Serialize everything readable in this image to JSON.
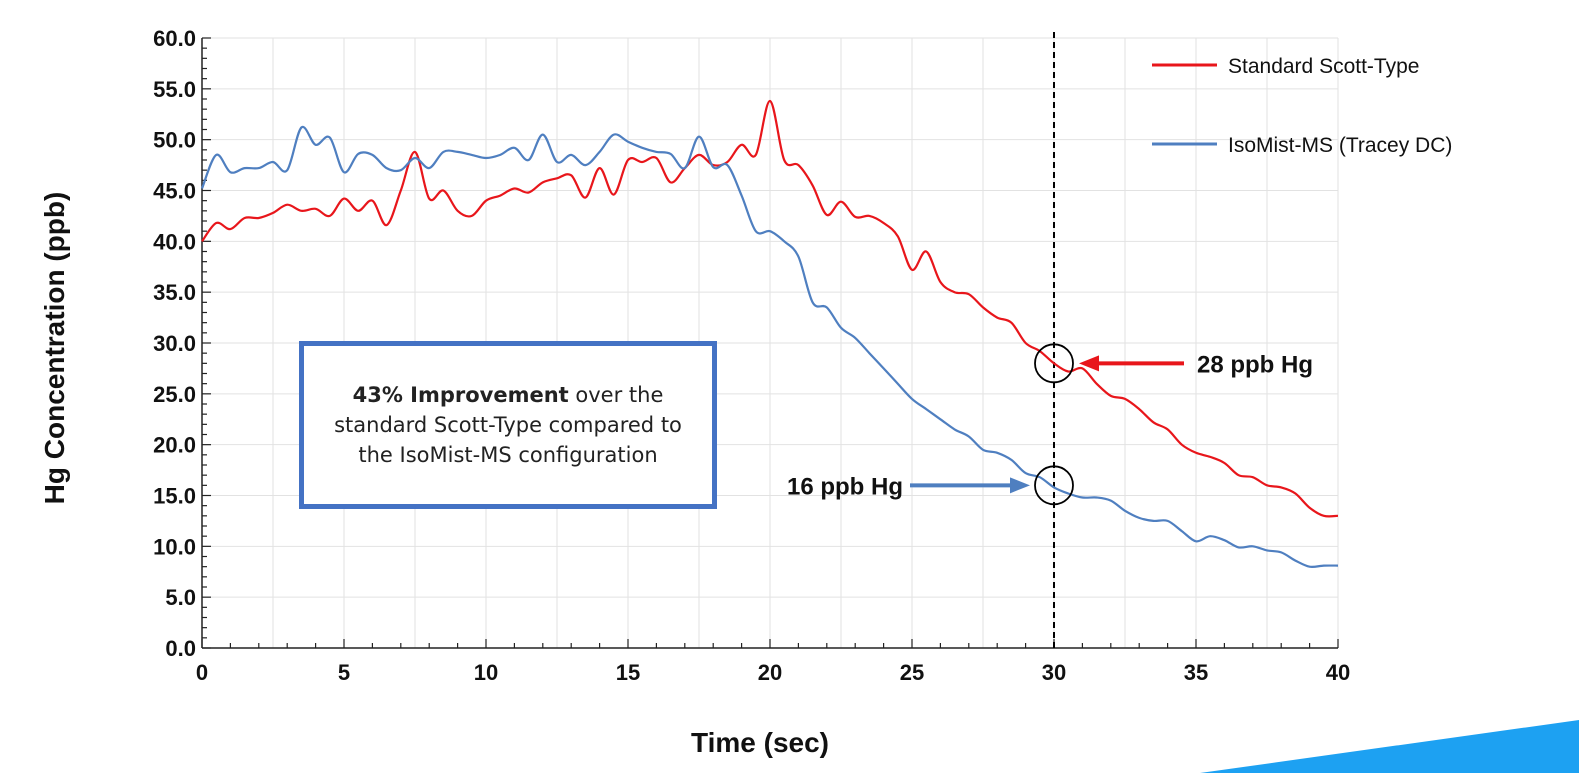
{
  "chart_data": {
    "type": "line",
    "xlabel": "Time (sec)",
    "ylabel": "Hg Concentration (ppb)",
    "xlim": [
      0,
      40
    ],
    "ylim": [
      0,
      60
    ],
    "x_ticks": [
      "0",
      "5",
      "10",
      "15",
      "20",
      "25",
      "30",
      "35",
      "40"
    ],
    "y_ticks": [
      "0.0",
      "5.0",
      "10.0",
      "15.0",
      "20.0",
      "25.0",
      "30.0",
      "35.0",
      "40.0",
      "45.0",
      "50.0",
      "55.0",
      "60.0"
    ],
    "grid": true,
    "legend_position": "top-right",
    "vertical_reference_line_x": 30,
    "series": [
      {
        "name": "Standard Scott-Type",
        "color": "#e8161b",
        "points": [
          [
            0,
            40.0
          ],
          [
            0.5,
            41.8
          ],
          [
            1,
            41.2
          ],
          [
            1.5,
            42.3
          ],
          [
            2,
            42.3
          ],
          [
            2.5,
            42.8
          ],
          [
            3,
            43.6
          ],
          [
            3.5,
            43.0
          ],
          [
            4,
            43.2
          ],
          [
            4.5,
            42.5
          ],
          [
            5,
            44.2
          ],
          [
            5.5,
            43.0
          ],
          [
            6,
            44.0
          ],
          [
            6.5,
            41.6
          ],
          [
            7,
            45.0
          ],
          [
            7.5,
            48.8
          ],
          [
            8,
            44.2
          ],
          [
            8.5,
            45.0
          ],
          [
            9,
            43.0
          ],
          [
            9.5,
            42.5
          ],
          [
            10,
            44.0
          ],
          [
            10.5,
            44.5
          ],
          [
            11,
            45.2
          ],
          [
            11.5,
            44.8
          ],
          [
            12,
            45.8
          ],
          [
            12.5,
            46.2
          ],
          [
            13,
            46.5
          ],
          [
            13.5,
            44.3
          ],
          [
            14,
            47.2
          ],
          [
            14.5,
            44.6
          ],
          [
            15,
            48.0
          ],
          [
            15.5,
            47.8
          ],
          [
            16,
            48.2
          ],
          [
            16.5,
            45.8
          ],
          [
            17,
            47.2
          ],
          [
            17.5,
            48.5
          ],
          [
            18,
            47.5
          ],
          [
            18.5,
            47.8
          ],
          [
            19,
            49.5
          ],
          [
            19.5,
            48.5
          ],
          [
            20,
            53.8
          ],
          [
            20.5,
            48.0
          ],
          [
            21,
            47.5
          ],
          [
            21.5,
            45.5
          ],
          [
            22,
            42.6
          ],
          [
            22.5,
            43.9
          ],
          [
            23,
            42.4
          ],
          [
            23.5,
            42.5
          ],
          [
            24,
            41.8
          ],
          [
            24.5,
            40.5
          ],
          [
            25,
            37.2
          ],
          [
            25.5,
            39.0
          ],
          [
            26,
            36.0
          ],
          [
            26.5,
            35.0
          ],
          [
            27,
            34.8
          ],
          [
            27.5,
            33.5
          ],
          [
            28,
            32.5
          ],
          [
            28.5,
            32.0
          ],
          [
            29,
            30.0
          ],
          [
            29.5,
            29.2
          ],
          [
            30,
            28.0
          ],
          [
            30.5,
            27.2
          ],
          [
            31,
            27.5
          ],
          [
            31.5,
            26.0
          ],
          [
            32,
            24.8
          ],
          [
            32.5,
            24.5
          ],
          [
            33,
            23.5
          ],
          [
            33.5,
            22.2
          ],
          [
            34,
            21.5
          ],
          [
            34.5,
            20.0
          ],
          [
            35,
            19.2
          ],
          [
            35.5,
            18.8
          ],
          [
            36,
            18.2
          ],
          [
            36.5,
            17.0
          ],
          [
            37,
            16.8
          ],
          [
            37.5,
            16.0
          ],
          [
            38,
            15.8
          ],
          [
            38.5,
            15.2
          ],
          [
            39,
            13.8
          ],
          [
            39.5,
            13.0
          ],
          [
            40,
            13.0
          ]
        ]
      },
      {
        "name": "IsoMist-MS (Tracey DC)",
        "color": "#4f7fc0",
        "points": [
          [
            0,
            45.2
          ],
          [
            0.5,
            48.5
          ],
          [
            1,
            46.8
          ],
          [
            1.5,
            47.2
          ],
          [
            2,
            47.2
          ],
          [
            2.5,
            47.8
          ],
          [
            3,
            47.0
          ],
          [
            3.5,
            51.2
          ],
          [
            4,
            49.5
          ],
          [
            4.5,
            50.2
          ],
          [
            5,
            46.8
          ],
          [
            5.5,
            48.6
          ],
          [
            6,
            48.5
          ],
          [
            6.5,
            47.2
          ],
          [
            7,
            47.0
          ],
          [
            7.5,
            48.2
          ],
          [
            8,
            47.2
          ],
          [
            8.5,
            48.8
          ],
          [
            9,
            48.8
          ],
          [
            9.5,
            48.5
          ],
          [
            10,
            48.2
          ],
          [
            10.5,
            48.5
          ],
          [
            11,
            49.2
          ],
          [
            11.5,
            48.0
          ],
          [
            12,
            50.5
          ],
          [
            12.5,
            47.8
          ],
          [
            13,
            48.5
          ],
          [
            13.5,
            47.5
          ],
          [
            14,
            48.8
          ],
          [
            14.5,
            50.5
          ],
          [
            15,
            49.8
          ],
          [
            15.5,
            49.2
          ],
          [
            16,
            48.8
          ],
          [
            16.5,
            48.6
          ],
          [
            17,
            47.2
          ],
          [
            17.5,
            50.3
          ],
          [
            18,
            47.3
          ],
          [
            18.5,
            47.5
          ],
          [
            19,
            44.5
          ],
          [
            19.5,
            41.0
          ],
          [
            20,
            41.0
          ],
          [
            20.5,
            40.0
          ],
          [
            21,
            38.5
          ],
          [
            21.5,
            34.0
          ],
          [
            22,
            33.5
          ],
          [
            22.5,
            31.5
          ],
          [
            23,
            30.5
          ],
          [
            23.5,
            29.0
          ],
          [
            24,
            27.5
          ],
          [
            24.5,
            26.0
          ],
          [
            25,
            24.5
          ],
          [
            25.5,
            23.5
          ],
          [
            26,
            22.5
          ],
          [
            26.5,
            21.5
          ],
          [
            27,
            20.8
          ],
          [
            27.5,
            19.5
          ],
          [
            28,
            19.2
          ],
          [
            28.5,
            18.5
          ],
          [
            29,
            17.2
          ],
          [
            29.5,
            16.8
          ],
          [
            30,
            15.8
          ],
          [
            30.5,
            15.2
          ],
          [
            31,
            14.8
          ],
          [
            31.5,
            14.8
          ],
          [
            32,
            14.5
          ],
          [
            32.5,
            13.5
          ],
          [
            33,
            12.8
          ],
          [
            33.5,
            12.5
          ],
          [
            34,
            12.5
          ],
          [
            34.5,
            11.5
          ],
          [
            35,
            10.5
          ],
          [
            35.5,
            11.0
          ],
          [
            36,
            10.6
          ],
          [
            36.5,
            9.9
          ],
          [
            37,
            10.0
          ],
          [
            37.5,
            9.6
          ],
          [
            38,
            9.4
          ],
          [
            38.5,
            8.6
          ],
          [
            39,
            8.0
          ],
          [
            39.5,
            8.1
          ],
          [
            40,
            8.1
          ]
        ]
      }
    ],
    "annotations": {
      "box_text_bold": "43% Improvement",
      "box_text_rest": " over the standard Scott-Type compared to the IsoMist-MS configuration",
      "red_callout": "28 ppb Hg",
      "blue_callout": "16 ppb Hg",
      "red_callout_value": 28,
      "blue_callout_value": 16
    }
  }
}
